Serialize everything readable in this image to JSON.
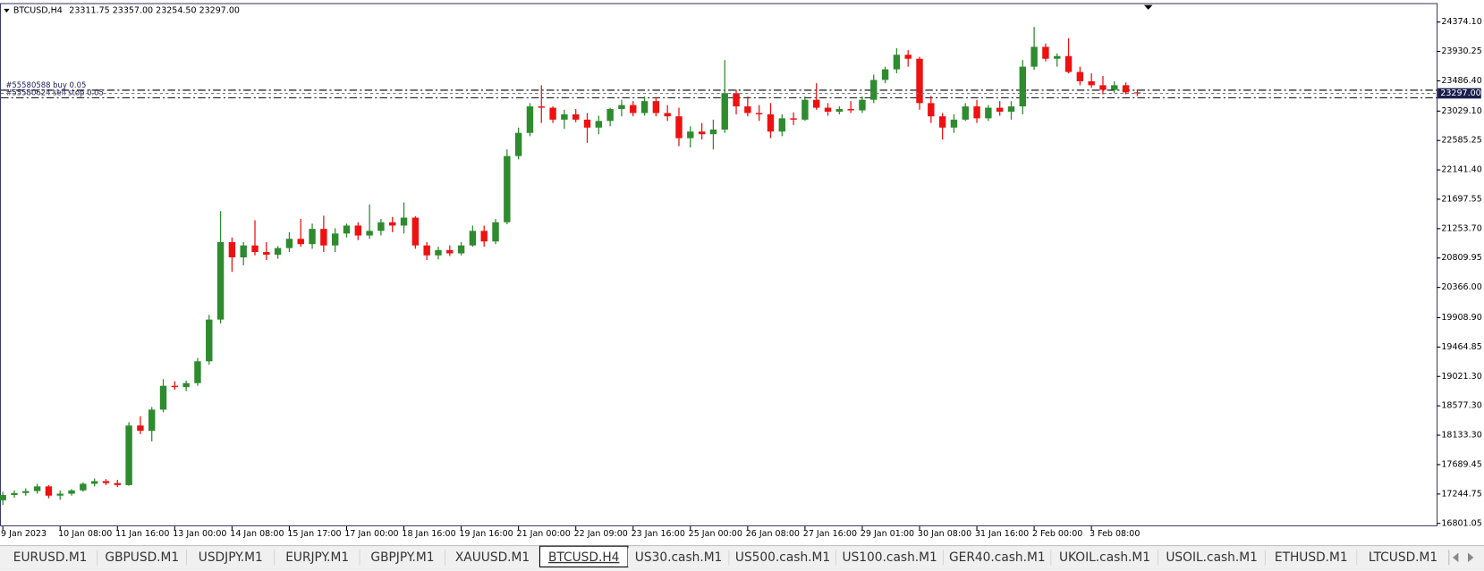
{
  "chart_data": {
    "type": "candlestick",
    "header": {
      "symbol": "BTCUSD,H4",
      "ohlc_text": "23311.75 23357.00 23254.50 23297.00"
    },
    "up_color": "#2e8b2e",
    "down_color": "#ee1111",
    "ylim": [
      16758,
      24646
    ],
    "yticks": [
      {
        "value": 16801.05,
        "label": "16801.05"
      },
      {
        "value": 17244.75,
        "label": "17244.75"
      },
      {
        "value": 17689.45,
        "label": "17689.45"
      },
      {
        "value": 18133.3,
        "label": "18133.30"
      },
      {
        "value": 18577.3,
        "label": "18577.30"
      },
      {
        "value": 19021.3,
        "label": "19021.30"
      },
      {
        "value": 19464.85,
        "label": "19464.85"
      },
      {
        "value": 19908.9,
        "label": "19908.90"
      },
      {
        "value": 20366,
        "label": "20366.00"
      },
      {
        "value": 20809.95,
        "label": "20809.95"
      },
      {
        "value": 21253.7,
        "label": "21253.70"
      },
      {
        "value": 21697.55,
        "label": "21697.55"
      },
      {
        "value": 22141.4,
        "label": "22141.40"
      },
      {
        "value": 22585.25,
        "label": "22585.25"
      },
      {
        "value": 23029.1,
        "label": "23029.10"
      },
      {
        "value": 23486.4,
        "label": "23486.40"
      },
      {
        "value": 23930.25,
        "label": "23930.25"
      },
      {
        "value": 24374.1,
        "label": "24374.10"
      }
    ],
    "price_label": {
      "value": 23297,
      "label": "23297.00"
    },
    "orders": [
      {
        "label": "#55580588 buy 0.05",
        "price": 23345
      },
      {
        "label": "#55580624 sell stop 0.05",
        "price": 23231
      }
    ],
    "categories": [
      "9 Jan 2023",
      null,
      null,
      null,
      null,
      "10 Jan 08:00",
      null,
      null,
      null,
      null,
      "11 Jan 16:00",
      null,
      null,
      null,
      null,
      "13 Jan 00:00",
      null,
      null,
      null,
      null,
      "14 Jan 08:00",
      null,
      null,
      null,
      null,
      "15 Jan 17:00",
      null,
      null,
      null,
      null,
      "17 Jan 00:00",
      null,
      null,
      null,
      null,
      "18 Jan 16:00",
      null,
      null,
      null,
      null,
      "19 Jan 16:00",
      null,
      null,
      null,
      null,
      "21 Jan 00:00",
      null,
      null,
      null,
      null,
      "22 Jan 09:00",
      null,
      null,
      null,
      null,
      "23 Jan 16:00",
      null,
      null,
      null,
      null,
      "25 Jan 00:00",
      null,
      null,
      null,
      null,
      "26 Jan 08:00",
      null,
      null,
      null,
      null,
      "27 Jan 16:00",
      null,
      null,
      null,
      null,
      "29 Jan 01:00",
      null,
      null,
      null,
      null,
      "30 Jan 08:00",
      null,
      null,
      null,
      null,
      "31 Jan 16:00",
      null,
      null,
      null,
      null,
      "2 Feb 00:00",
      null,
      null,
      null,
      null,
      "3 Feb 08:00",
      null,
      null,
      null,
      null
    ],
    "ohlc": [
      [
        17150,
        17280,
        17080,
        17230
      ],
      [
        17230,
        17300,
        17190,
        17260
      ],
      [
        17260,
        17330,
        17220,
        17290
      ],
      [
        17290,
        17400,
        17250,
        17360
      ],
      [
        17360,
        17380,
        17180,
        17220
      ],
      [
        17220,
        17300,
        17160,
        17250
      ],
      [
        17250,
        17320,
        17220,
        17300
      ],
      [
        17300,
        17420,
        17280,
        17400
      ],
      [
        17400,
        17480,
        17360,
        17440
      ],
      [
        17440,
        17470,
        17380,
        17410
      ],
      [
        17410,
        17460,
        17350,
        17380
      ],
      [
        17380,
        18330,
        17370,
        18280
      ],
      [
        18280,
        18420,
        18150,
        18200
      ],
      [
        18200,
        18560,
        18040,
        18520
      ],
      [
        18520,
        18980,
        18480,
        18880
      ],
      [
        18880,
        18950,
        18820,
        18860
      ],
      [
        18860,
        18960,
        18800,
        18920
      ],
      [
        18920,
        19300,
        18880,
        19250
      ],
      [
        19250,
        19950,
        19200,
        19880
      ],
      [
        19880,
        21520,
        19820,
        21050
      ],
      [
        21050,
        21120,
        20600,
        20820
      ],
      [
        20820,
        21050,
        20700,
        21000
      ],
      [
        21000,
        21380,
        20850,
        20900
      ],
      [
        20900,
        21050,
        20780,
        20860
      ],
      [
        20860,
        20990,
        20800,
        20960
      ],
      [
        20960,
        21200,
        20900,
        21100
      ],
      [
        21100,
        21400,
        20980,
        21020
      ],
      [
        21020,
        21330,
        20950,
        21250
      ],
      [
        21250,
        21450,
        20900,
        21000
      ],
      [
        21000,
        21260,
        20900,
        21180
      ],
      [
        21180,
        21330,
        21120,
        21300
      ],
      [
        21300,
        21350,
        21080,
        21150
      ],
      [
        21150,
        21620,
        21100,
        21220
      ],
      [
        21220,
        21400,
        21150,
        21350
      ],
      [
        21350,
        21430,
        21200,
        21300
      ],
      [
        21300,
        21650,
        21180,
        21420
      ],
      [
        21420,
        21440,
        20950,
        21000
      ],
      [
        21000,
        21050,
        20780,
        20850
      ],
      [
        20850,
        20980,
        20790,
        20930
      ],
      [
        20930,
        21000,
        20840,
        20880
      ],
      [
        20880,
        21050,
        20850,
        21000
      ],
      [
        21000,
        21300,
        20980,
        21220
      ],
      [
        21220,
        21300,
        20980,
        21060
      ],
      [
        21060,
        21400,
        21020,
        21350
      ],
      [
        21350,
        22450,
        21320,
        22350
      ],
      [
        22350,
        22780,
        22300,
        22700
      ],
      [
        22700,
        23150,
        22650,
        23100
      ],
      [
        23100,
        23420,
        22850,
        23080
      ],
      [
        23080,
        23100,
        22850,
        22900
      ],
      [
        22900,
        23050,
        22760,
        22980
      ],
      [
        22980,
        23060,
        22860,
        22900
      ],
      [
        22900,
        23000,
        22550,
        22780
      ],
      [
        22780,
        22960,
        22680,
        22880
      ],
      [
        22880,
        23080,
        22800,
        23060
      ],
      [
        23060,
        23200,
        22950,
        23120
      ],
      [
        23120,
        23180,
        22950,
        23000
      ],
      [
        23000,
        23250,
        22960,
        23180
      ],
      [
        23180,
        23240,
        22950,
        23000
      ],
      [
        23000,
        23120,
        22880,
        22950
      ],
      [
        22950,
        23080,
        22500,
        22620
      ],
      [
        22620,
        22800,
        22480,
        22720
      ],
      [
        22720,
        22850,
        22600,
        22680
      ],
      [
        22680,
        22900,
        22450,
        22750
      ],
      [
        22750,
        23800,
        22700,
        23300
      ],
      [
        23300,
        23350,
        22980,
        23100
      ],
      [
        23100,
        23250,
        22950,
        23000
      ],
      [
        23000,
        23120,
        22880,
        22980
      ],
      [
        22980,
        23150,
        22620,
        22720
      ],
      [
        22720,
        22980,
        22650,
        22920
      ],
      [
        22920,
        23010,
        22820,
        22900
      ],
      [
        22900,
        23250,
        22880,
        23200
      ],
      [
        23200,
        23450,
        23050,
        23080
      ],
      [
        23080,
        23150,
        22960,
        23020
      ],
      [
        23020,
        23100,
        22980,
        23060
      ],
      [
        23060,
        23180,
        23000,
        23040
      ],
      [
        23040,
        23250,
        23000,
        23200
      ],
      [
        23200,
        23580,
        23150,
        23500
      ],
      [
        23500,
        23700,
        23450,
        23660
      ],
      [
        23660,
        23980,
        23600,
        23880
      ],
      [
        23880,
        23950,
        23700,
        23820
      ],
      [
        23820,
        23850,
        23050,
        23150
      ],
      [
        23150,
        23260,
        22850,
        22950
      ],
      [
        22950,
        23000,
        22600,
        22780
      ],
      [
        22780,
        22980,
        22700,
        22900
      ],
      [
        22900,
        23150,
        22880,
        23100
      ],
      [
        23100,
        23200,
        22850,
        22920
      ],
      [
        22920,
        23120,
        22880,
        23080
      ],
      [
        23080,
        23180,
        22960,
        23020
      ],
      [
        23020,
        23180,
        22900,
        23100
      ],
      [
        23100,
        23800,
        22980,
        23700
      ],
      [
        23700,
        24300,
        23650,
        24000
      ],
      [
        24000,
        24050,
        23780,
        23820
      ],
      [
        23820,
        23900,
        23700,
        23860
      ],
      [
        23860,
        24130,
        23600,
        23620
      ],
      [
        23620,
        23700,
        23420,
        23480
      ],
      [
        23480,
        23600,
        23380,
        23420
      ],
      [
        23420,
        23560,
        23280,
        23350
      ],
      [
        23350,
        23480,
        23300,
        23420
      ],
      [
        23420,
        23460,
        23280,
        23311.75
      ],
      [
        23311.75,
        23357,
        23254.5,
        23297
      ]
    ]
  },
  "tabs": [
    "EURUSD.M1",
    "GBPUSD.M1",
    "USDJPY.M1",
    "EURJPY.M1",
    "GBPJPY.M1",
    "XAUUSD.M1",
    "BTCUSD.H4",
    "US30.cash.M1",
    "US500.cash.M1",
    "US100.cash.M1",
    "GER40.cash.M1",
    "UKOIL.cash.M1",
    "USOIL.cash.M1",
    "ETHUSD.M1",
    "LTCUSD.M1"
  ],
  "active_tab": 6
}
